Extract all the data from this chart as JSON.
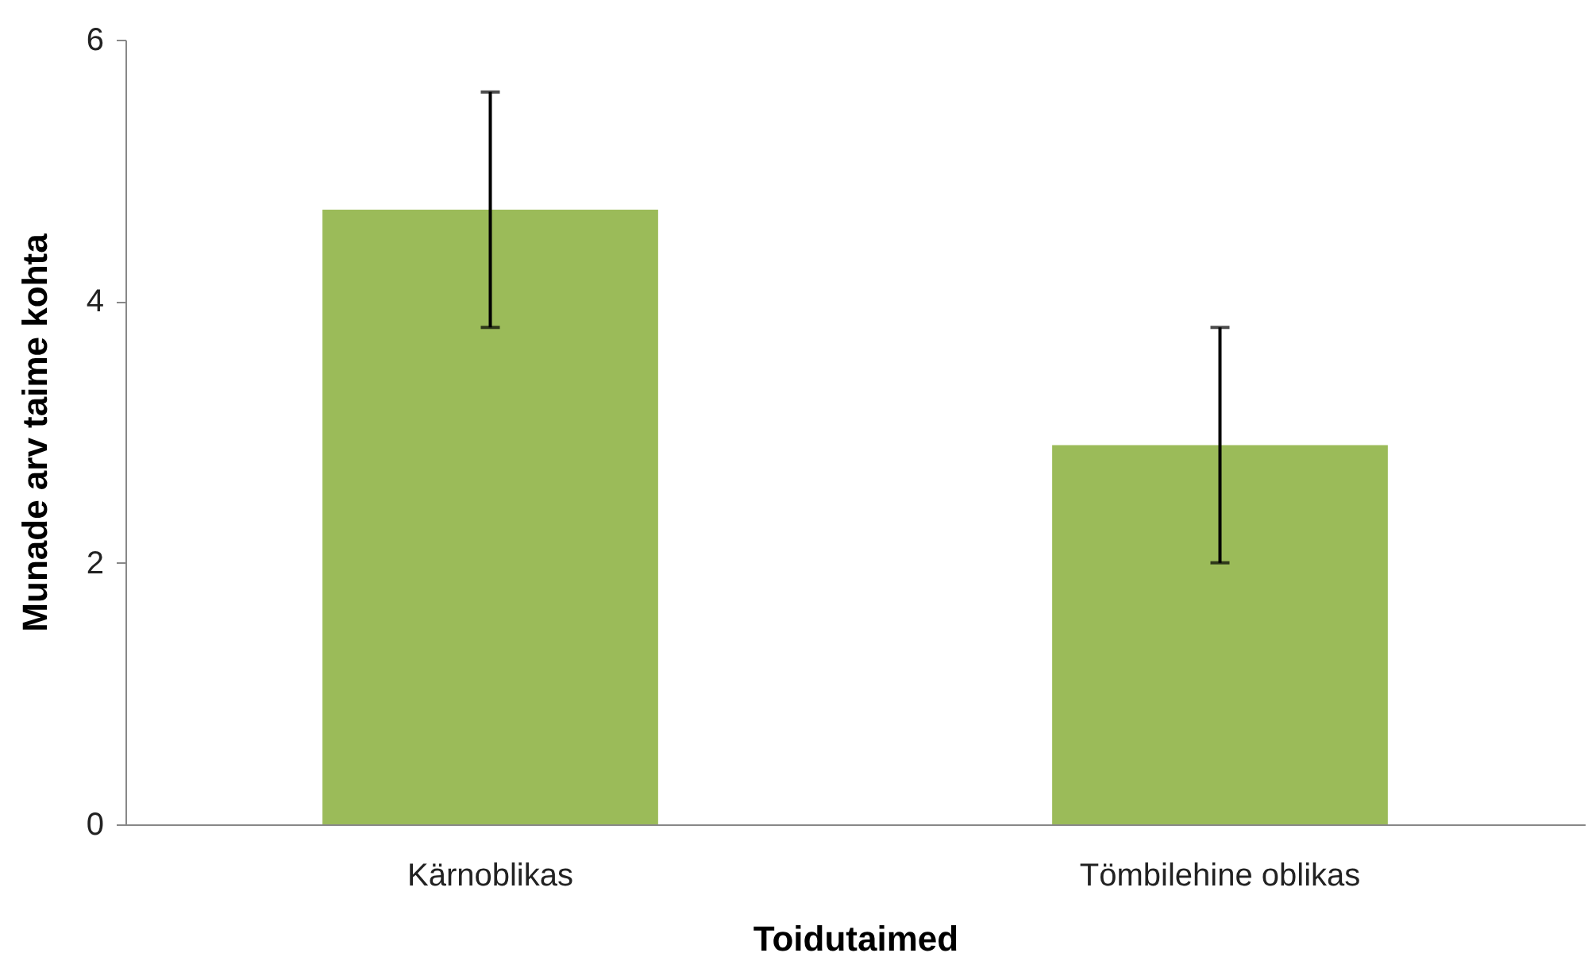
{
  "chart_data": {
    "type": "bar",
    "xlabel": "Toidutaimed",
    "ylabel": "Munade arv taime kohta",
    "categories": [
      "Kärnoblikas",
      "Tömbilehine oblikas"
    ],
    "values": [
      4.7,
      2.9
    ],
    "errors": [
      0.9,
      0.9
    ],
    "color": "#9bbb59",
    "ylim": [
      0,
      6
    ],
    "yticks": [
      0,
      2,
      4,
      6
    ],
    "grid": false
  }
}
